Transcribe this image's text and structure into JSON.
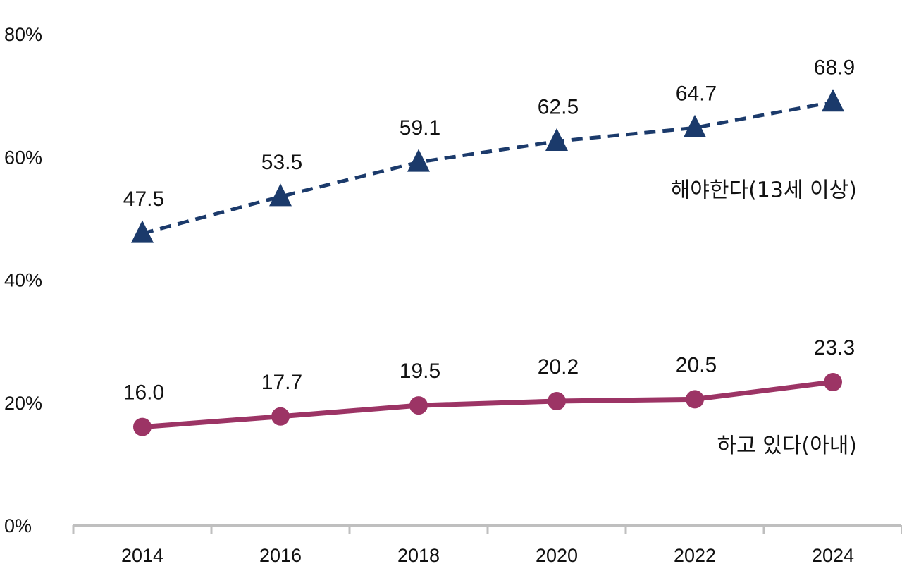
{
  "chart_data": {
    "type": "line",
    "x": [
      "2014",
      "2016",
      "2018",
      "2020",
      "2022",
      "2024"
    ],
    "ylim": [
      0,
      80
    ],
    "y_ticks": [
      "0%",
      "20%",
      "40%",
      "60%",
      "80%"
    ],
    "y_tick_values": [
      0,
      20,
      40,
      60,
      80
    ],
    "grid": false,
    "series": [
      {
        "name": "해야한다(13세 이상)",
        "values": [
          47.5,
          53.5,
          59.1,
          62.5,
          64.7,
          68.9
        ],
        "labels": [
          "47.5",
          "53.5",
          "59.1",
          "62.5",
          "64.7",
          "68.9"
        ],
        "color": "#1b3a6b",
        "line_style": "dashed",
        "marker": "triangle"
      },
      {
        "name": "하고 있다(아내)",
        "values": [
          16.0,
          17.7,
          19.5,
          20.2,
          20.5,
          23.3
        ],
        "labels": [
          "16.0",
          "17.7",
          "19.5",
          "20.2",
          "20.5",
          "23.3"
        ],
        "color": "#9c3465",
        "line_style": "solid",
        "marker": "circle"
      }
    ],
    "axis_color": "#bfbfbf"
  }
}
